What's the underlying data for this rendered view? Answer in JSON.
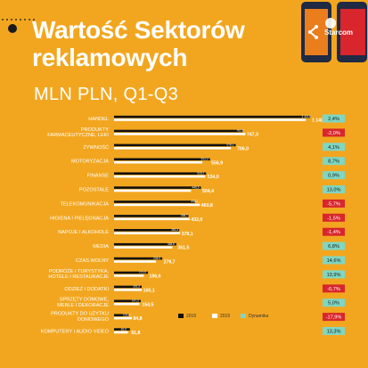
{
  "header": {
    "title_line1": "Wartość Sektorów",
    "title_line2": "reklamowych",
    "subtitle": "MLN PLN, Q1-Q3",
    "brand": "Starcom"
  },
  "colors": {
    "background": "#f2a61f",
    "bar_2016": "#111111",
    "bar_2015": "#ffffff",
    "dyn_positive": "#7fd6c2",
    "dyn_negative": "#d8262c"
  },
  "legend": {
    "y2016": "2016",
    "y2015": "2015",
    "dyn": "Dynamika"
  },
  "chart_data": {
    "type": "bar",
    "orientation": "horizontal",
    "series_names": [
      "2016",
      "2015",
      "Dynamika"
    ],
    "categories": [
      [
        "HANDEL"
      ],
      [
        "PRODUKTY",
        "FARMACEUTYCZNE, LEKI"
      ],
      [
        "ŻYWNOŚĆ"
      ],
      [
        "MOTORYZACJA"
      ],
      [
        "FINANSE"
      ],
      [
        "POZOSTAŁE"
      ],
      [
        "TELEKOMUNIKACJA"
      ],
      [
        "HIGIENA I PIELĘGNACJA"
      ],
      [
        "NAPOJE I ALKOHOLE"
      ],
      [
        "MEDIA"
      ],
      [
        "CZAS WOLNY"
      ],
      [
        "PODRÓŻE I TURYSTYKA,",
        "HOTELE I RESTAURACJE"
      ],
      [
        "ODZIEŻ I DODATKI"
      ],
      [
        "SPRZĘTY DOMOWE,",
        "MEBLE I DEKORACJE"
      ],
      [
        "PRODUKTY DO UŻYTKU",
        "DOMOWEGO"
      ],
      [
        "KOMPUTERY I AUDIO VIDEO"
      ]
    ],
    "values_2016": [
      1140.3,
      747.3,
      706.0,
      556.9,
      534.0,
      504.4,
      469.8,
      432.0,
      378.1,
      361.5,
      279.7,
      196.6,
      160.1,
      154.5,
      84.8,
      91.8
    ],
    "labels_2016": [
      "1 140,3",
      "747,3",
      "706,0",
      "556,9",
      "534,0",
      "504,4",
      "469,8",
      "432,0",
      "378,1",
      "361,5",
      "279,7",
      "196,6",
      "160,1",
      "154,5",
      "84,8",
      "91,8"
    ],
    "values_2015": [
      1113.6,
      762.5,
      678.2,
      512.3,
      529.2,
      446.5,
      498.1,
      438.7,
      383.4,
      338.6,
      244.0,
      172.6,
      161.2,
      147.2,
      103.3,
      81.0
    ],
    "labels_2015": [
      "1 113,6",
      "762,5",
      "678,2",
      "512,3",
      "529,2",
      "446,5",
      "498,1",
      "438,7",
      "383,4",
      "338,6",
      "244,0",
      "172,6",
      "161,2",
      "147,2",
      "103,3",
      "81,0"
    ],
    "dynamika": [
      "2,4%",
      "-2,0%",
      "4,1%",
      "8,7%",
      "0,9%",
      "13,0%",
      "-5,7%",
      "-1,5%",
      "-1,4%",
      "6,8%",
      "14,6%",
      "13,9%",
      "-0,7%",
      "5,0%",
      "-17,9%",
      "13,3%"
    ],
    "dynamika_values": [
      2.4,
      -2.0,
      4.1,
      8.7,
      0.9,
      13.0,
      -5.7,
      -1.5,
      -1.4,
      6.8,
      14.6,
      13.9,
      -0.7,
      5.0,
      -17.9,
      13.3
    ],
    "xlim": [
      0,
      1200
    ]
  }
}
